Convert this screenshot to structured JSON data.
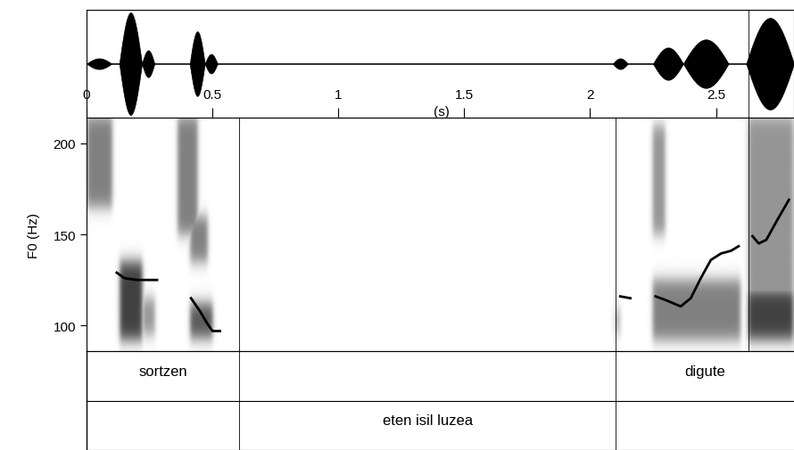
{
  "chart_data": {
    "type": "spectrogram",
    "xlabel": "(s)",
    "ylabel": "F0 (Hz)",
    "xlim": [
      0,
      2.81
    ],
    "xticks": [
      0,
      0.5,
      1,
      1.5,
      2,
      2.5
    ],
    "ylim": [
      86,
      214
    ],
    "yticks": [
      100,
      150,
      200
    ],
    "color": "#000000",
    "waveform": {
      "ylim": [
        -1,
        1
      ],
      "bursts": [
        [
          0.0,
          0.1,
          0.1
        ],
        [
          0.13,
          0.22,
          0.95
        ],
        [
          0.22,
          0.27,
          0.25
        ],
        [
          0.41,
          0.47,
          0.6
        ],
        [
          0.47,
          0.52,
          0.18
        ],
        [
          2.09,
          2.15,
          0.1
        ],
        [
          2.25,
          2.37,
          0.3
        ],
        [
          2.37,
          2.55,
          0.45
        ],
        [
          2.62,
          2.81,
          0.85
        ]
      ],
      "marks": [
        2.628
      ]
    },
    "energy_regions": [
      [
        0.0,
        0.1,
        165,
        215,
        0.6
      ],
      [
        0.13,
        0.22,
        92,
        135,
        0.9
      ],
      [
        0.22,
        0.27,
        95,
        115,
        0.5
      ],
      [
        0.36,
        0.44,
        150,
        215,
        0.6
      ],
      [
        0.41,
        0.48,
        135,
        160,
        0.6
      ],
      [
        0.41,
        0.5,
        93,
        112,
        0.8
      ],
      [
        2.1,
        2.12,
        95,
        110,
        0.4
      ],
      [
        2.25,
        2.3,
        150,
        210,
        0.5
      ],
      [
        2.25,
        2.6,
        92,
        125,
        0.6
      ],
      [
        2.63,
        2.81,
        90,
        215,
        0.5
      ],
      [
        2.63,
        2.81,
        92,
        120,
        0.9
      ]
    ],
    "pitch": [
      {
        "x": [
          0.12,
          0.15,
          0.2,
          0.28
        ],
        "values": [
          129,
          126,
          125,
          125
        ]
      },
      {
        "x": [
          0.415,
          0.45,
          0.48,
          0.5,
          0.53
        ],
        "values": [
          115,
          108,
          101,
          97,
          97
        ]
      },
      {
        "x": [
          2.12,
          2.16
        ],
        "values": [
          116,
          115
        ]
      },
      {
        "x": [
          2.26,
          2.3,
          2.36,
          2.4,
          2.44,
          2.48,
          2.52,
          2.56,
          2.59
        ],
        "values": [
          116,
          114,
          110.5,
          115,
          126,
          136,
          139.5,
          141,
          143.5
        ]
      },
      {
        "x": [
          2.645,
          2.67,
          2.7,
          2.74,
          2.79
        ],
        "values": [
          149,
          145,
          147,
          157,
          169
        ]
      }
    ],
    "boundaries": [
      0.606,
      2.103,
      2.628
    ],
    "tiers": [
      {
        "boundaries": [
          0.606,
          2.103
        ],
        "intervals": [
          {
            "start": 0,
            "end": 0.606,
            "text": "sortzen"
          },
          {
            "start": 2.103,
            "end": 2.81,
            "text": "digute"
          }
        ]
      },
      {
        "boundaries": [
          0.606,
          2.103
        ],
        "intervals": [
          {
            "start": 0.606,
            "end": 2.103,
            "text": "eten isil luzea"
          }
        ]
      }
    ]
  }
}
